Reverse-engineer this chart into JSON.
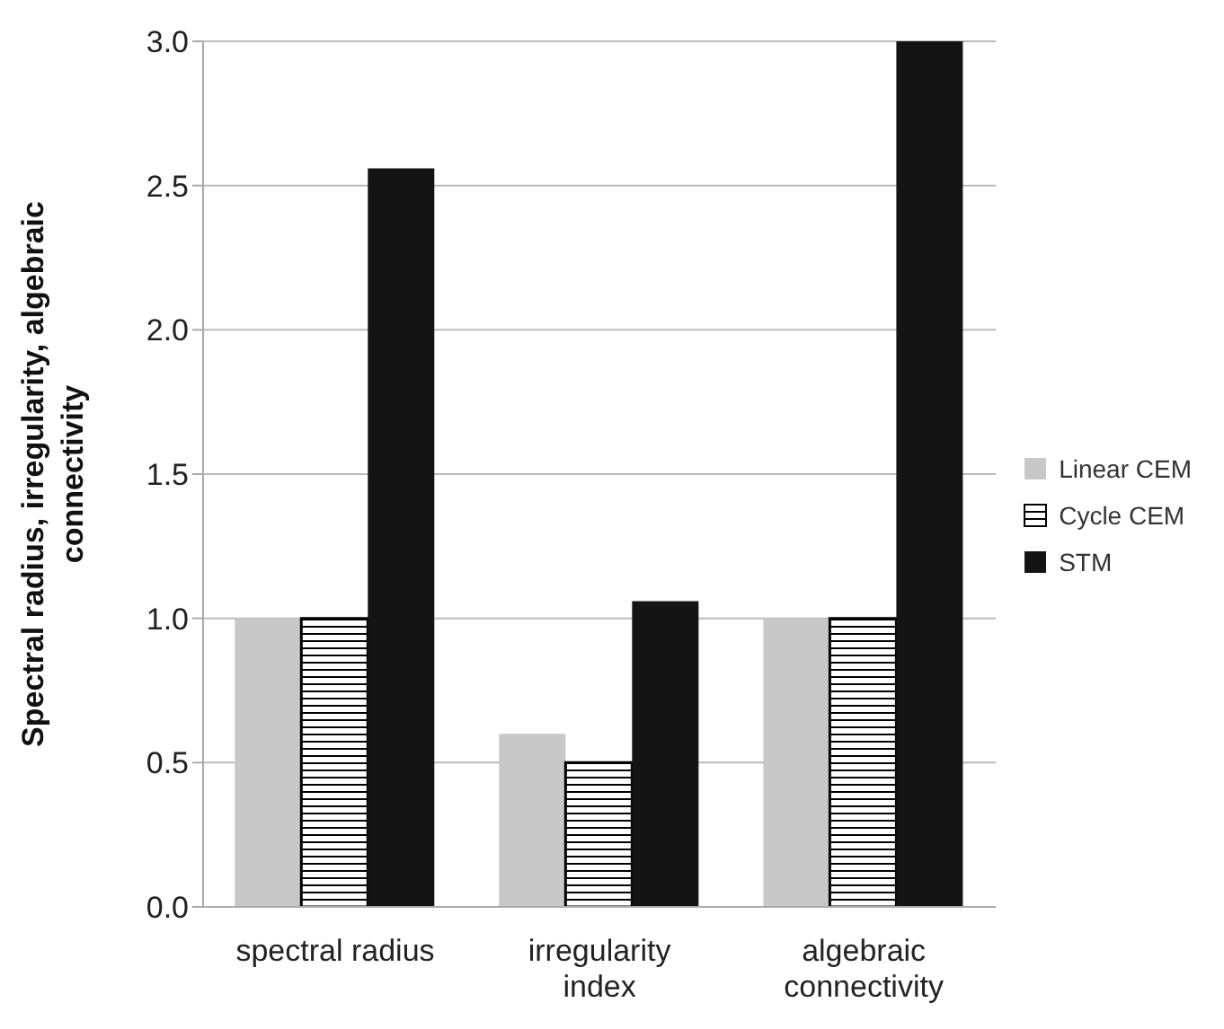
{
  "chart_data": {
    "type": "bar",
    "ylabel": "Spectral radius, irregularity, algebraic connectivity",
    "categories": [
      "spectral radius",
      "irregularity index",
      "algebraic connectivity"
    ],
    "series": [
      {
        "name": "Linear CEM",
        "color": "#c8c8c8",
        "values": [
          1.0,
          0.6,
          1.0
        ]
      },
      {
        "name": "Cycle CEM",
        "color": "#000000",
        "values": [
          1.0,
          0.5,
          1.0
        ]
      },
      {
        "name": "STM",
        "color": "#141414",
        "values": [
          2.56,
          1.06,
          3.0
        ]
      }
    ],
    "ylim": [
      0,
      3.0
    ],
    "yticks": [
      {
        "value": 0,
        "label": "0.0"
      },
      {
        "value": 0.5,
        "label": "0.5"
      },
      {
        "value": 1,
        "label": "1.0"
      },
      {
        "value": 1.5,
        "label": "1.5"
      },
      {
        "value": 2,
        "label": "2.0"
      },
      {
        "value": 2.5,
        "label": "2.5"
      },
      {
        "value": 3,
        "label": "3.0"
      }
    ],
    "grid": "y",
    "legend": "right"
  }
}
